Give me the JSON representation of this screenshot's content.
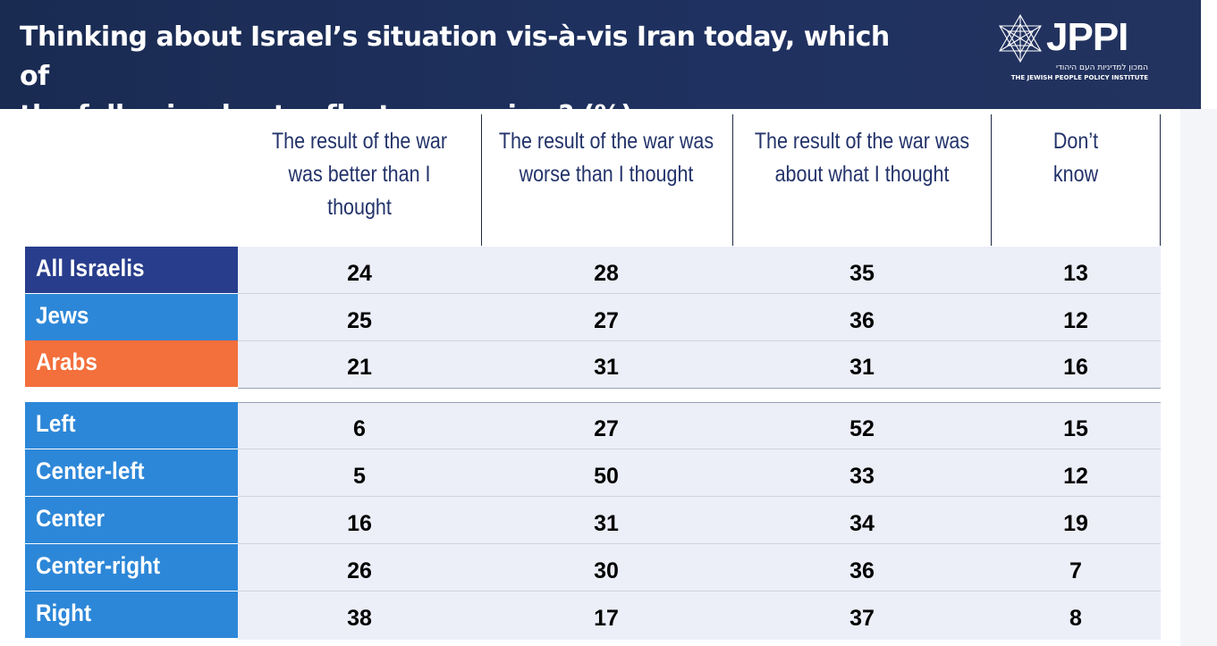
{
  "header": {
    "title_line1": "Thinking about Israel’s situation vis-à-vis Iran today, which of",
    "title_line2": "the following best reflects your view? (%)",
    "logo_text": "JPPI",
    "logo_hebrew": "המכון למדיניות העם היהודי",
    "logo_subtitle": "THE JEWISH PEOPLE POLICY INSTITUTE",
    "logo_icon": "star-of-david-icon"
  },
  "colors": {
    "header_bg": "#1f3160",
    "all_israelis": "#283d8c",
    "jews": "#2d87d8",
    "arabs": "#f36f3c",
    "political": "#2d87d8",
    "column_text": "#23336a",
    "cell_bg": "#eceef8"
  },
  "chart_data": {
    "type": "table",
    "title": "Thinking about Israel’s situation vis-à-vis Iran today, which of the following best reflects your view? (%)",
    "columns": [
      {
        "line1": "The result of the war",
        "line2": "was better than I",
        "line3": "thought"
      },
      {
        "line1": "The result of the war was",
        "line2": "worse than I thought",
        "line3": ""
      },
      {
        "line1": "The result of the war was",
        "line2": "about what I thought",
        "line3": ""
      },
      {
        "line1": "Don’t",
        "line2": "know",
        "line3": ""
      }
    ],
    "rows": [
      {
        "label": "All Israelis",
        "values": [
          24,
          28,
          35,
          13
        ]
      },
      {
        "label": "Jews",
        "values": [
          25,
          27,
          36,
          12
        ]
      },
      {
        "label": "Arabs",
        "values": [
          21,
          31,
          31,
          16
        ]
      },
      {
        "label": "Left",
        "values": [
          6,
          27,
          52,
          15
        ]
      },
      {
        "label": "Center-left",
        "values": [
          5,
          50,
          33,
          12
        ]
      },
      {
        "label": "Center",
        "values": [
          16,
          31,
          34,
          19
        ]
      },
      {
        "label": "Center-right",
        "values": [
          26,
          30,
          36,
          7
        ]
      },
      {
        "label": "Right",
        "values": [
          38,
          17,
          37,
          8
        ]
      }
    ]
  }
}
